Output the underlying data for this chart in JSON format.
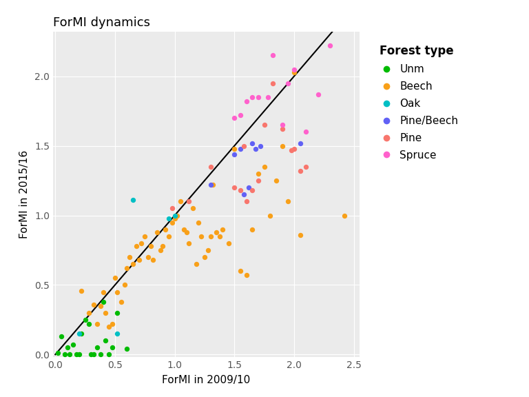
{
  "title": "ForMI dynamics",
  "xlabel": "ForMI in 2009/10",
  "ylabel": "ForMI in 2015/16",
  "xlim": [
    -0.02,
    2.55
  ],
  "ylim": [
    -0.02,
    2.32
  ],
  "xticks": [
    0.0,
    0.5,
    1.0,
    1.5,
    2.0,
    2.5
  ],
  "yticks": [
    0.0,
    0.5,
    1.0,
    1.5,
    2.0
  ],
  "background_color": "#ffffff",
  "panel_background": "#ebebeb",
  "grid_color": "#ffffff",
  "legend_title": "Forest type",
  "forest_types": {
    "Unm": {
      "color": "#00bb00",
      "x": [
        0.02,
        0.05,
        0.08,
        0.1,
        0.12,
        0.15,
        0.18,
        0.2,
        0.22,
        0.25,
        0.28,
        0.3,
        0.32,
        0.35,
        0.38,
        0.4,
        0.42,
        0.45,
        0.48,
        0.52,
        0.6
      ],
      "y": [
        0.01,
        0.13,
        0.0,
        0.05,
        0.0,
        0.07,
        0.0,
        0.0,
        0.15,
        0.25,
        0.22,
        0.0,
        0.0,
        0.05,
        0.0,
        0.38,
        0.1,
        0.0,
        0.05,
        0.3,
        0.04
      ]
    },
    "Beech": {
      "color": "#f8a019",
      "x": [
        0.22,
        0.28,
        0.32,
        0.35,
        0.38,
        0.4,
        0.42,
        0.45,
        0.48,
        0.5,
        0.52,
        0.55,
        0.58,
        0.6,
        0.62,
        0.65,
        0.68,
        0.7,
        0.72,
        0.75,
        0.78,
        0.8,
        0.82,
        0.85,
        0.88,
        0.9,
        0.92,
        0.95,
        0.98,
        1.0,
        1.02,
        1.05,
        1.08,
        1.1,
        1.12,
        1.15,
        1.18,
        1.2,
        1.22,
        1.25,
        1.28,
        1.3,
        1.32,
        1.35,
        1.38,
        1.4,
        1.45,
        1.5,
        1.55,
        1.6,
        1.65,
        1.7,
        1.75,
        1.8,
        1.85,
        1.9,
        1.95,
        2.0,
        2.05,
        2.42
      ],
      "y": [
        0.46,
        0.3,
        0.36,
        0.22,
        0.35,
        0.45,
        0.3,
        0.2,
        0.22,
        0.55,
        0.45,
        0.38,
        0.5,
        0.62,
        0.7,
        0.65,
        0.78,
        0.68,
        0.8,
        0.85,
        0.7,
        0.78,
        0.68,
        0.88,
        0.75,
        0.78,
        0.9,
        0.85,
        0.95,
        0.98,
        1.0,
        1.1,
        0.9,
        0.88,
        0.8,
        1.05,
        0.65,
        0.95,
        0.85,
        0.7,
        0.75,
        0.85,
        1.22,
        0.88,
        0.85,
        0.9,
        0.8,
        1.48,
        0.6,
        0.57,
        0.9,
        1.3,
        1.35,
        1.0,
        1.25,
        1.5,
        1.1,
        2.03,
        0.86,
        1.0
      ]
    },
    "Oak": {
      "color": "#00bfc4",
      "x": [
        0.2,
        0.52,
        0.65,
        0.95,
        1.0
      ],
      "y": [
        0.15,
        0.15,
        1.11,
        0.98,
        1.0
      ]
    },
    "Pine/Beech": {
      "color": "#6161f5",
      "x": [
        1.3,
        1.5,
        1.55,
        1.58,
        1.62,
        1.65,
        1.68,
        1.72,
        2.05
      ],
      "y": [
        1.22,
        1.44,
        1.48,
        1.15,
        1.2,
        1.52,
        1.48,
        1.5,
        1.52
      ]
    },
    "Pine": {
      "color": "#f8766d",
      "x": [
        0.98,
        1.12,
        1.3,
        1.5,
        1.55,
        1.58,
        1.6,
        1.65,
        1.7,
        1.75,
        1.82,
        1.9,
        1.98,
        2.0,
        2.05,
        2.1
      ],
      "y": [
        1.05,
        1.1,
        1.35,
        1.2,
        1.18,
        1.5,
        1.1,
        1.18,
        1.25,
        1.65,
        1.95,
        1.62,
        1.47,
        1.48,
        1.32,
        1.35
      ]
    },
    "Spruce": {
      "color": "#ff61cc",
      "x": [
        1.5,
        1.55,
        1.6,
        1.65,
        1.7,
        1.78,
        1.82,
        1.9,
        1.95,
        2.0,
        2.1,
        2.2,
        2.3
      ],
      "y": [
        1.7,
        1.72,
        1.82,
        1.85,
        1.85,
        1.85,
        2.15,
        1.65,
        1.95,
        2.05,
        1.6,
        1.87,
        2.22
      ]
    }
  }
}
